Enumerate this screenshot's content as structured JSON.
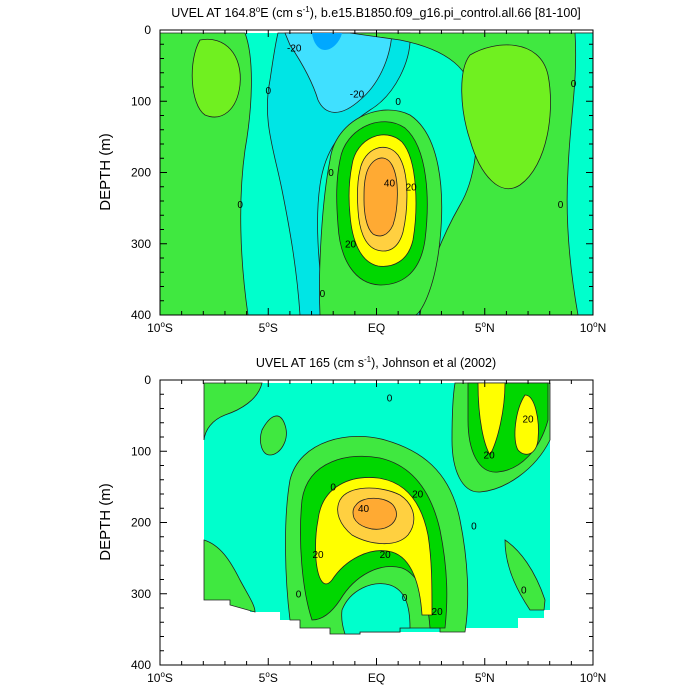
{
  "colors": {
    "band_neg40": "#00a8ff",
    "band_neg20": "#00e5e5",
    "band_neg20_lt": "#40e0ff",
    "band_0": "#00ffcc",
    "band_0_lt": "#20eec8",
    "band_pos0": "#40e840",
    "band_pos_lt": "#70f020",
    "band_20": "#00d700",
    "band_30": "#ffff00",
    "band_40": "#ffd040",
    "band_50": "#ffaa33",
    "contour": "#222222"
  },
  "chart_data": [
    {
      "type": "contour",
      "title_prefix": "UVEL AT 164.8",
      "title_deg": "o",
      "title_mid": "E (cm s",
      "title_sup": "-1",
      "title_suffix": "), b.e15.B1850.f09_g16.pi_control.all.66 [81-100]",
      "ylabel": "DEPTH (m)",
      "xlim": [
        -10,
        10
      ],
      "ylim": [
        400,
        0
      ],
      "x_ticks": [
        -10,
        -5,
        0,
        5,
        10
      ],
      "x_tick_labels": [
        {
          "num": "10",
          "deg": "o",
          "hemi": "S"
        },
        {
          "num": "5",
          "deg": "o",
          "hemi": "S"
        },
        {
          "num": "EQ",
          "deg": "",
          "hemi": ""
        },
        {
          "num": "5",
          "deg": "o",
          "hemi": "N"
        },
        {
          "num": "10",
          "deg": "o",
          "hemi": "N"
        }
      ],
      "y_ticks": [
        0,
        100,
        200,
        300,
        400
      ],
      "y_tick_labels": [
        "0",
        "100",
        "200",
        "300",
        "400"
      ],
      "data_depth_range": [
        5,
        400
      ],
      "contour_labels": [
        {
          "text": "-20",
          "x": -3.8,
          "y": 25
        },
        {
          "text": "-20",
          "x": -0.9,
          "y": 90
        },
        {
          "text": "0",
          "x": -5.0,
          "y": 85
        },
        {
          "text": "0",
          "x": 1.0,
          "y": 100
        },
        {
          "text": "0",
          "x": 9.1,
          "y": 75
        },
        {
          "text": "0",
          "x": -2.1,
          "y": 200
        },
        {
          "text": "0",
          "x": -6.3,
          "y": 245
        },
        {
          "text": "0",
          "x": 8.5,
          "y": 245
        },
        {
          "text": "0",
          "x": -2.5,
          "y": 370
        },
        {
          "text": "40",
          "x": 0.6,
          "y": 215
        },
        {
          "text": "20",
          "x": 1.6,
          "y": 220
        },
        {
          "text": "20",
          "x": -1.2,
          "y": 300
        }
      ]
    },
    {
      "type": "contour",
      "title_prefix": "UVEL AT 165 (cm s",
      "title_deg": "",
      "title_mid": "",
      "title_sup": "-1",
      "title_suffix": "), Johnson et al (2002)",
      "ylabel": "DEPTH (m)",
      "xlim": [
        -10,
        10
      ],
      "ylim": [
        400,
        0
      ],
      "x_ticks": [
        -10,
        -5,
        0,
        5,
        10
      ],
      "x_tick_labels": [
        {
          "num": "10",
          "deg": "o",
          "hemi": "S"
        },
        {
          "num": "5",
          "deg": "o",
          "hemi": "S"
        },
        {
          "num": "EQ",
          "deg": "",
          "hemi": ""
        },
        {
          "num": "5",
          "deg": "o",
          "hemi": "N"
        },
        {
          "num": "10",
          "deg": "o",
          "hemi": "N"
        }
      ],
      "y_ticks": [
        0,
        100,
        200,
        300,
        400
      ],
      "y_tick_labels": [
        "0",
        "100",
        "200",
        "300",
        "400"
      ],
      "data_lon_range": [
        -8,
        8
      ],
      "contour_labels": [
        {
          "text": "0",
          "x": 0.6,
          "y": 25
        },
        {
          "text": "20",
          "x": 7.0,
          "y": 55
        },
        {
          "text": "20",
          "x": 5.2,
          "y": 105
        },
        {
          "text": "0",
          "x": -2.0,
          "y": 150
        },
        {
          "text": "20",
          "x": 1.9,
          "y": 160
        },
        {
          "text": "40",
          "x": -0.6,
          "y": 180
        },
        {
          "text": "0",
          "x": 4.5,
          "y": 205
        },
        {
          "text": "20",
          "x": -2.7,
          "y": 245
        },
        {
          "text": "20",
          "x": 0.4,
          "y": 245
        },
        {
          "text": "0",
          "x": -3.6,
          "y": 300
        },
        {
          "text": "0",
          "x": 1.3,
          "y": 305
        },
        {
          "text": "0",
          "x": 6.8,
          "y": 295
        },
        {
          "text": "20",
          "x": 2.8,
          "y": 325
        }
      ]
    }
  ]
}
